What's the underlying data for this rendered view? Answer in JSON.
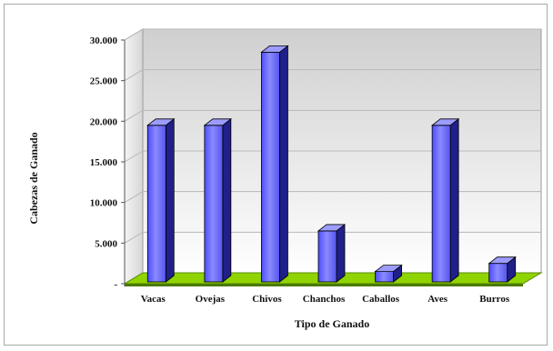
{
  "chart_data": {
    "type": "bar",
    "title": "",
    "xlabel": "Tipo de Ganado",
    "ylabel": "Cabezas de Ganado",
    "ylim": [
      0,
      30000
    ],
    "yticks": [
      "-",
      "5.000",
      "10.000",
      "15.000",
      "20.000",
      "25.000",
      "30.000"
    ],
    "ytick_values": [
      0,
      5000,
      10000,
      15000,
      20000,
      25000,
      30000
    ],
    "categories": [
      "Vacas",
      "Ovejas",
      "Chivos",
      "Chanchos",
      "Caballos",
      "Aves",
      "Burros"
    ],
    "values": [
      19500,
      19500,
      28500,
      6500,
      1500,
      19500,
      2500
    ],
    "grid": true,
    "legend": "none",
    "style": "3d",
    "colors": {
      "bar_face": "#6b6bff",
      "bar_side": "#20208a",
      "bar_top": "#9c9cff",
      "floor": "#8fd400",
      "wall_top": "#cfcfcf",
      "wall_bottom": "#ffffff"
    }
  }
}
